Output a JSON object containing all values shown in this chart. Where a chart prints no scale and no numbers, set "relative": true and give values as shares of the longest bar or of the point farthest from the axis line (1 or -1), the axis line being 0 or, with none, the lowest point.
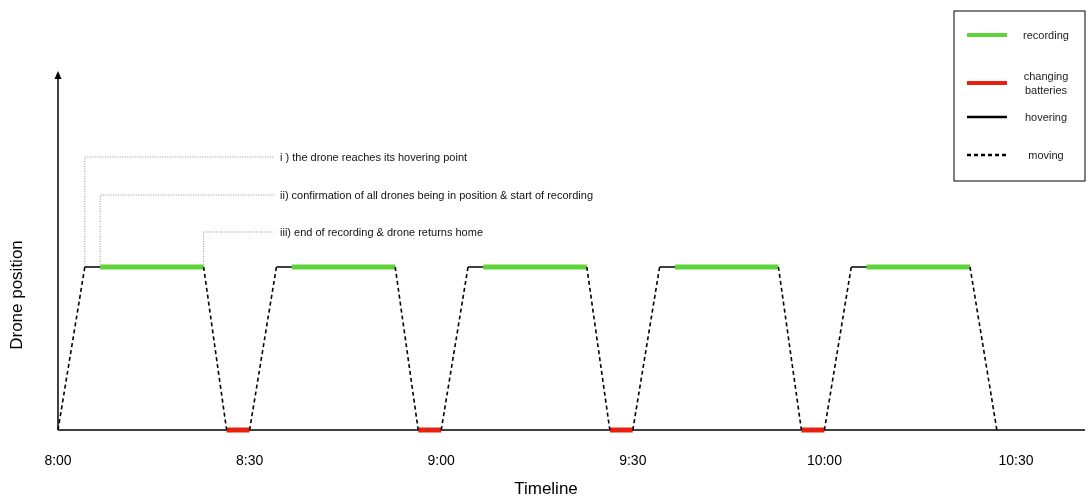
{
  "chart_data": {
    "type": "line",
    "xlabel": "Timeline",
    "ylabel": "Drone position",
    "relative": true,
    "xlim": [
      8,
      10.68
    ],
    "xticks": [
      {
        "value": 8,
        "label": "8:00"
      },
      {
        "value": 8.5,
        "label": "8:30"
      },
      {
        "value": 9,
        "label": "9:00"
      },
      {
        "value": 9.5,
        "label": "9:30"
      },
      {
        "value": 10,
        "label": "10:00"
      },
      {
        "value": 10.5,
        "label": "10:30"
      }
    ],
    "series": [
      {
        "name": "recording",
        "color": "#5fd33a",
        "x": [
          8.11,
          8.38,
          null,
          8.61,
          8.88,
          null,
          9.11,
          9.38,
          null,
          9.61,
          9.88,
          null,
          10.11,
          10.38
        ],
        "values": [
          1,
          1,
          null,
          1,
          1,
          null,
          1,
          1,
          null,
          1,
          1,
          null,
          1,
          1
        ]
      },
      {
        "name": "changing batteries",
        "color": "#e8210f",
        "x": [
          8.44,
          8.5,
          null,
          8.94,
          9.0,
          null,
          9.44,
          9.5,
          null,
          9.94,
          10.0
        ],
        "values": [
          0,
          0,
          null,
          0,
          0,
          null,
          0,
          0,
          null,
          0,
          0
        ]
      },
      {
        "name": "hovering",
        "color": "#000000",
        "x": [
          8.07,
          8.11,
          null,
          8.57,
          8.61,
          null,
          9.07,
          9.11,
          null,
          9.57,
          9.61,
          null,
          10.07,
          10.11
        ],
        "values": [
          1,
          1,
          null,
          1,
          1,
          null,
          1,
          1,
          null,
          1,
          1,
          null,
          1,
          1
        ]
      },
      {
        "name": "moving",
        "color": "#000000",
        "line_style": "dashed",
        "x": [
          8.0,
          8.07,
          null,
          8.38,
          8.44,
          null,
          8.5,
          8.57,
          null,
          8.88,
          8.94,
          null,
          9.0,
          9.07,
          null,
          9.38,
          9.44,
          null,
          9.5,
          9.57,
          null,
          9.88,
          9.94,
          null,
          10.0,
          10.07,
          null,
          10.38,
          10.45
        ],
        "values": [
          0,
          1,
          null,
          1,
          0,
          null,
          0,
          1,
          null,
          1,
          0,
          null,
          0,
          1,
          null,
          1,
          0,
          null,
          0,
          1,
          null,
          1,
          0,
          null,
          0,
          1,
          null,
          1,
          0
        ]
      }
    ],
    "annotations": [
      {
        "text": "i ) the drone reaches its hovering point",
        "x": 8.07,
        "y": 1
      },
      {
        "text": "ii) confirmation of all drones being in position & start of recording",
        "x": 8.11,
        "y": 1
      },
      {
        "text": "iii) end of recording & drone returns home",
        "x": 8.38,
        "y": 1
      }
    ],
    "legend": "top right"
  }
}
